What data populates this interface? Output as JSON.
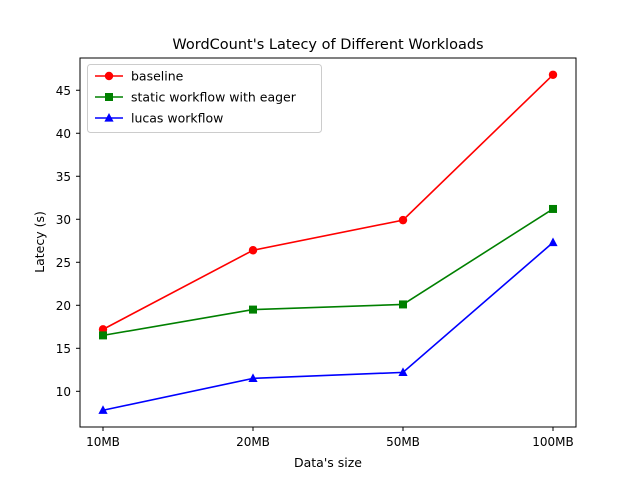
{
  "chart_data": {
    "type": "line",
    "title": "WordCount's Latecy of Different Workloads",
    "xlabel": "Data's size",
    "ylabel": "Latecy (s)",
    "categories": [
      "10MB",
      "20MB",
      "50MB",
      "100MB"
    ],
    "ylim": [
      5.85,
      48.75
    ],
    "yticks": [
      10,
      15,
      20,
      25,
      30,
      35,
      40,
      45
    ],
    "grid": false,
    "legend_position": "top-left",
    "series": [
      {
        "name": "baseline",
        "color": "#ff0000",
        "marker": "circle",
        "values": [
          17.2,
          26.4,
          29.9,
          46.8
        ]
      },
      {
        "name": "static workflow with eager",
        "color": "#008000",
        "marker": "square",
        "values": [
          16.5,
          19.5,
          20.1,
          31.2
        ]
      },
      {
        "name": "lucas workflow",
        "color": "#0000ff",
        "marker": "triangle",
        "values": [
          7.8,
          11.5,
          12.2,
          27.3
        ]
      }
    ]
  }
}
